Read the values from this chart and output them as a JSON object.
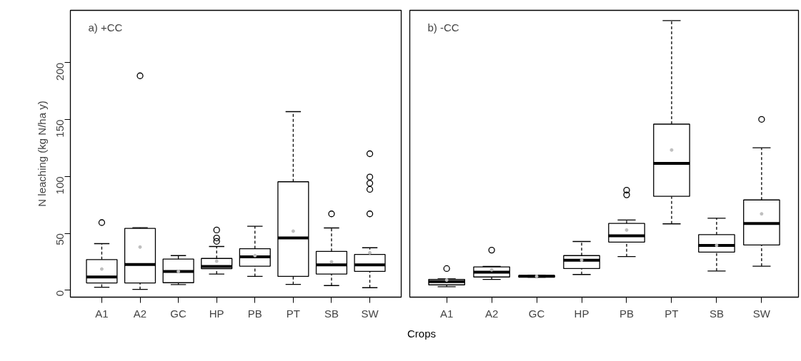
{
  "chart_data": [
    {
      "type": "box",
      "annotations": [
        "a) +CC"
      ],
      "ylabel": "N leaching (kg N/ha y)",
      "xlabel": "Crops",
      "categories": [
        "A1",
        "A2",
        "GC",
        "HP",
        "PB",
        "PT",
        "SB",
        "SW"
      ],
      "ylim": [
        -6,
        246
      ],
      "yticks": [
        0,
        50,
        100,
        150,
        200
      ],
      "boxes": [
        {
          "low": 2.7,
          "q1": 6.5,
          "median": 11.7,
          "q3": 27,
          "high": 41,
          "mean": 18.7,
          "outliers": [
            59.5
          ]
        },
        {
          "low": 0.8,
          "q1": 6.5,
          "median": 22.7,
          "q3": 54.4,
          "high": 55,
          "mean": 38,
          "outliers": [
            188.5
          ]
        },
        {
          "low": 5,
          "q1": 6.7,
          "median": 16.6,
          "q3": 27.5,
          "high": 30.5,
          "mean": 16.6
        },
        {
          "low": 14.3,
          "q1": 19,
          "median": 21,
          "q3": 28,
          "high": 38.5,
          "mean": 25.6,
          "outliers": [
            43,
            46,
            53
          ]
        },
        {
          "low": 12.2,
          "q1": 21.2,
          "median": 29.4,
          "q3": 36.6,
          "high": 56.3,
          "mean": 30.5
        },
        {
          "low": 5.2,
          "q1": 12.2,
          "median": 46,
          "q3": 95.4,
          "high": 157,
          "mean": 52
        },
        {
          "low": 4.2,
          "q1": 14.3,
          "median": 22.3,
          "q3": 34.2,
          "high": 54.8,
          "mean": 25,
          "outliers": [
            67.2
          ]
        },
        {
          "low": 2.3,
          "q1": 16.6,
          "median": 22.3,
          "q3": 31.5,
          "high": 37.4,
          "mean": 33,
          "outliers": [
            67.2,
            88.7,
            94.1,
            99.6,
            120
          ]
        }
      ]
    },
    {
      "type": "box",
      "annotations": [
        "b) -CC"
      ],
      "tick_labels": "x",
      "categories": [
        "A1",
        "A2",
        "GC",
        "HP",
        "PB",
        "PT",
        "SB",
        "SW"
      ],
      "ylim": [
        -6,
        246
      ],
      "boxes": [
        {
          "low": 3.2,
          "q1": 4.8,
          "median": 7.6,
          "q3": 9.6,
          "high": 10,
          "mean": 9,
          "outliers": [
            19.1
          ]
        },
        {
          "low": 9.6,
          "q1": 11.7,
          "median": 16,
          "q3": 20.6,
          "high": 21,
          "mean": 18,
          "outliers": [
            35.3
          ]
        },
        {
          "low": 11.5,
          "q1": 11.7,
          "median": 12.4,
          "q3": 13,
          "high": 13.3,
          "mean": 12.4
        },
        {
          "low": 13.9,
          "q1": 19.1,
          "median": 26.5,
          "q3": 30.5,
          "high": 42.9,
          "mean": 26.5
        },
        {
          "low": 29.6,
          "q1": 42.4,
          "median": 47.9,
          "q3": 58.8,
          "high": 61.8,
          "mean": 53,
          "outliers": [
            83.9,
            88
          ]
        },
        {
          "low": 58.4,
          "q1": 82.6,
          "median": 111.6,
          "q3": 146,
          "high": 237,
          "mean": 123.3
        },
        {
          "low": 17,
          "q1": 33.6,
          "median": 39.5,
          "q3": 48.9,
          "high": 63.4,
          "mean": 39.5
        },
        {
          "low": 21.2,
          "q1": 39.9,
          "median": 58.8,
          "q3": 79.4,
          "high": 125.2,
          "mean": 67.2,
          "outliers": [
            150.2
          ]
        }
      ]
    }
  ]
}
